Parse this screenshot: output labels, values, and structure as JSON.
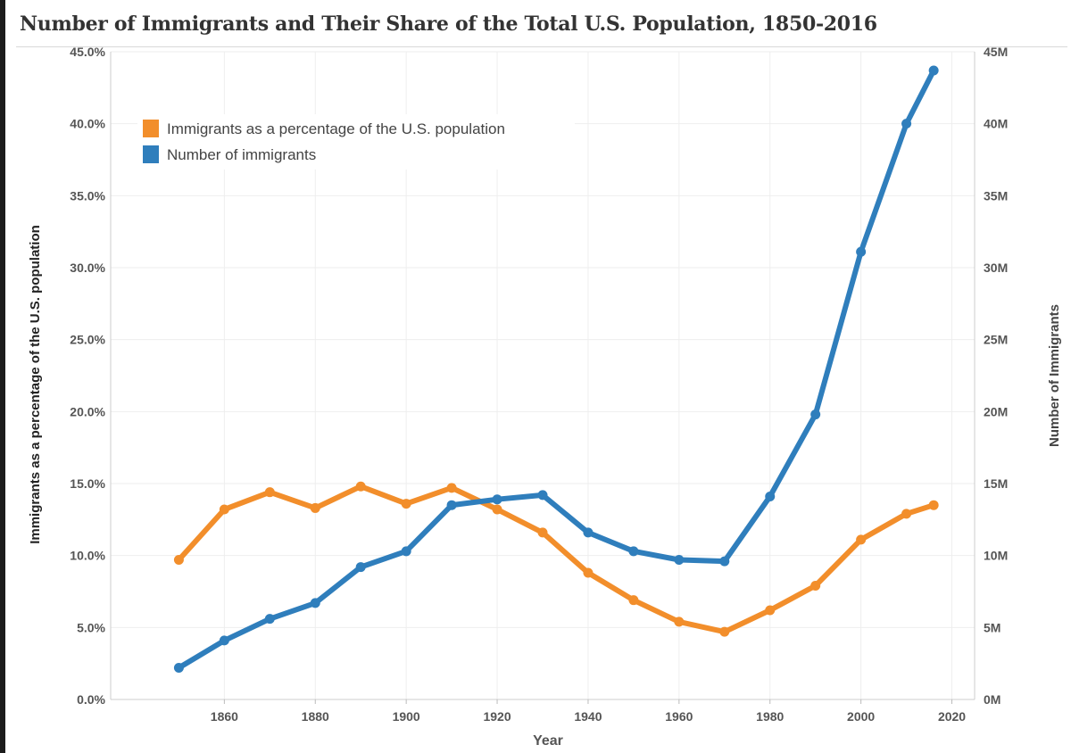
{
  "chart_data": {
    "type": "line",
    "title": "Number of Immigrants and Their Share of the Total U.S. Population, 1850-2016",
    "xlabel": "Year",
    "ylabel": "Immigrants as a percentage of the U.S. population",
    "ylabel_right": "Number of Immigrants",
    "x": [
      1850,
      1860,
      1870,
      1880,
      1890,
      1900,
      1910,
      1920,
      1930,
      1940,
      1950,
      1960,
      1970,
      1980,
      1990,
      2000,
      2010,
      2016
    ],
    "xlim": [
      1835,
      2025
    ],
    "xticks": [
      1860,
      1880,
      1900,
      1920,
      1940,
      1960,
      1980,
      2000,
      2020
    ],
    "ylim": [
      0,
      45
    ],
    "yticks": [
      "0.0%",
      "5.0%",
      "10.0%",
      "15.0%",
      "20.0%",
      "25.0%",
      "30.0%",
      "35.0%",
      "40.0%",
      "45.0%"
    ],
    "ylim_right": [
      0,
      45
    ],
    "yticks_right": [
      "0M",
      "5M",
      "10M",
      "15M",
      "20M",
      "25M",
      "30M",
      "35M",
      "40M",
      "45M"
    ],
    "series": [
      {
        "name": "Immigrants as a percentage of the U.S. population",
        "axis": "left",
        "color": "#f28e2b",
        "values": [
          9.7,
          13.2,
          14.4,
          13.3,
          14.8,
          13.6,
          14.7,
          13.2,
          11.6,
          8.8,
          6.9,
          5.4,
          4.7,
          6.2,
          7.9,
          11.1,
          12.9,
          13.5
        ]
      },
      {
        "name": "Number of immigrants",
        "axis": "right",
        "color": "#2f7ebc",
        "values": [
          2.2,
          4.1,
          5.6,
          6.7,
          9.2,
          10.3,
          13.5,
          13.9,
          14.2,
          11.6,
          10.3,
          9.7,
          9.6,
          14.1,
          19.8,
          31.1,
          40.0,
          43.7
        ]
      }
    ],
    "legend_position": "top-left",
    "grid": true
  }
}
